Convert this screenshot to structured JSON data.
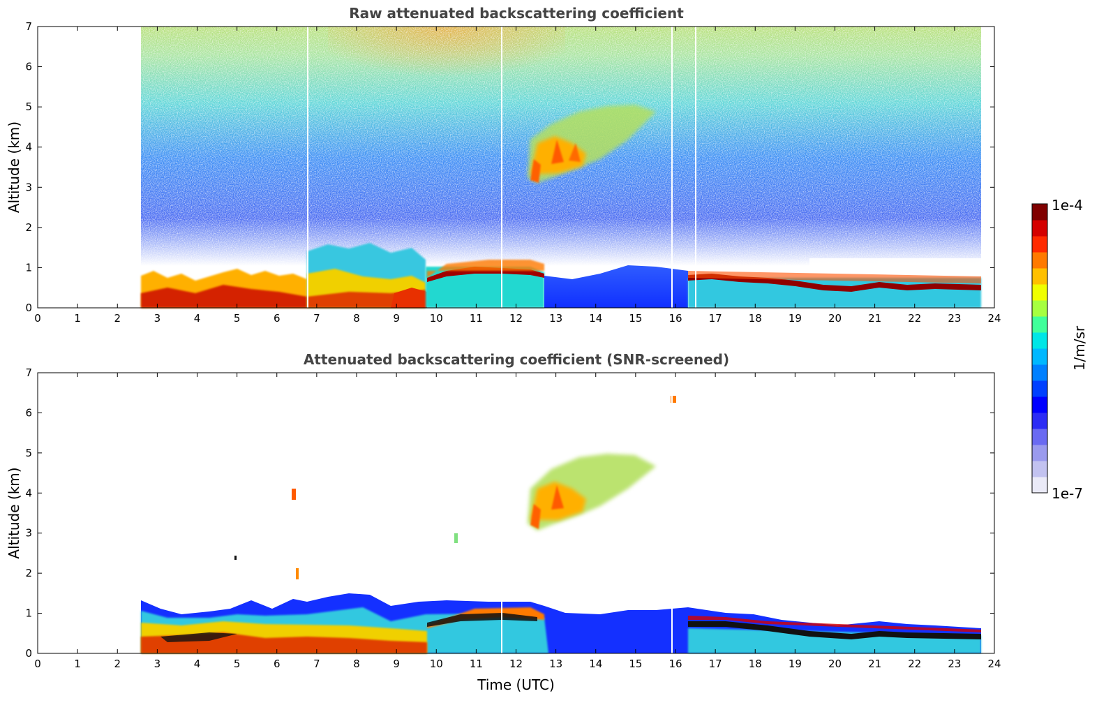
{
  "chart_data": [
    {
      "type": "heatmap",
      "title": "Raw attenuated backscattering coefficient",
      "xlabel": "",
      "ylabel": "Altitude (km)",
      "xlim": [
        0,
        24
      ],
      "ylim": [
        0,
        7
      ],
      "xticks": [
        "0",
        "1",
        "2",
        "3",
        "4",
        "5",
        "6",
        "7",
        "8",
        "9",
        "10",
        "11",
        "12",
        "13",
        "14",
        "15",
        "16",
        "17",
        "18",
        "19",
        "20",
        "21",
        "22",
        "23",
        "24"
      ],
      "yticks": [
        "0",
        "1",
        "2",
        "3",
        "4",
        "5",
        "6",
        "7"
      ],
      "data_coverage_utc": [
        2.55,
        23.6
      ],
      "features": [
        {
          "name": "noisy upper free troposphere",
          "x": [
            2.55,
            23.6
          ],
          "y": [
            1.0,
            7.0
          ],
          "level": "noise"
        },
        {
          "name": "convective boundary layer",
          "x": [
            2.55,
            9.7
          ],
          "y": [
            0,
            1.1
          ],
          "level": "high"
        },
        {
          "name": "layer top 10-12.4 UTC",
          "x": [
            9.7,
            12.4
          ],
          "y": [
            0.9,
            1.2
          ],
          "level": "very high"
        },
        {
          "name": "clear low-level region",
          "x": [
            12.4,
            16.3
          ],
          "y": [
            0,
            1.0
          ],
          "level": "low"
        },
        {
          "name": "elevated aerosol layer",
          "x": [
            12.3,
            16.0
          ],
          "y": [
            3.0,
            5.0
          ],
          "level": "medium-high"
        },
        {
          "name": "nocturnal layer top",
          "x": [
            16.3,
            23.6
          ],
          "y": [
            0.4,
            0.95
          ],
          "level": "very high"
        }
      ]
    },
    {
      "type": "heatmap",
      "title": "Attenuated backscattering coefficient (SNR-screened)",
      "xlabel": "Time (UTC)",
      "ylabel": "Altitude (km)",
      "xlim": [
        0,
        24
      ],
      "ylim": [
        0,
        7
      ],
      "xticks": [
        "0",
        "1",
        "2",
        "3",
        "4",
        "5",
        "6",
        "7",
        "8",
        "9",
        "10",
        "11",
        "12",
        "13",
        "14",
        "15",
        "16",
        "17",
        "18",
        "19",
        "20",
        "21",
        "22",
        "23",
        "24"
      ],
      "yticks": [
        "0",
        "1",
        "2",
        "3",
        "4",
        "5",
        "6",
        "7"
      ],
      "data_coverage_utc": [
        2.55,
        23.6
      ],
      "features": [
        {
          "name": "boundary layer",
          "x": [
            2.55,
            23.6
          ],
          "y": [
            0,
            1.5
          ],
          "level": "mixed"
        },
        {
          "name": "elevated aerosol layer",
          "x": [
            12.3,
            16.0
          ],
          "y": [
            3.0,
            5.0
          ],
          "level": "medium-high"
        },
        {
          "name": "isolated echo",
          "x": [
            16.0,
            16.0
          ],
          "y": [
            6.3,
            6.3
          ],
          "level": "high"
        }
      ]
    }
  ],
  "colorbar": {
    "label": "1/m/sr",
    "max_label": "1e-4",
    "min_label": "1e-7",
    "min_value": 1e-07,
    "max_value": 0.0001,
    "scale": "log",
    "colors": [
      "#eaeaf7",
      "#c2c2f0",
      "#9a9aee",
      "#6a6af2",
      "#2c2cf5",
      "#0000ff",
      "#0040ff",
      "#0080ff",
      "#00b8ff",
      "#00e6e6",
      "#40ff9a",
      "#a6ff40",
      "#f0ff00",
      "#ffc000",
      "#ff7a00",
      "#ff2a00",
      "#d40000",
      "#800000"
    ]
  }
}
